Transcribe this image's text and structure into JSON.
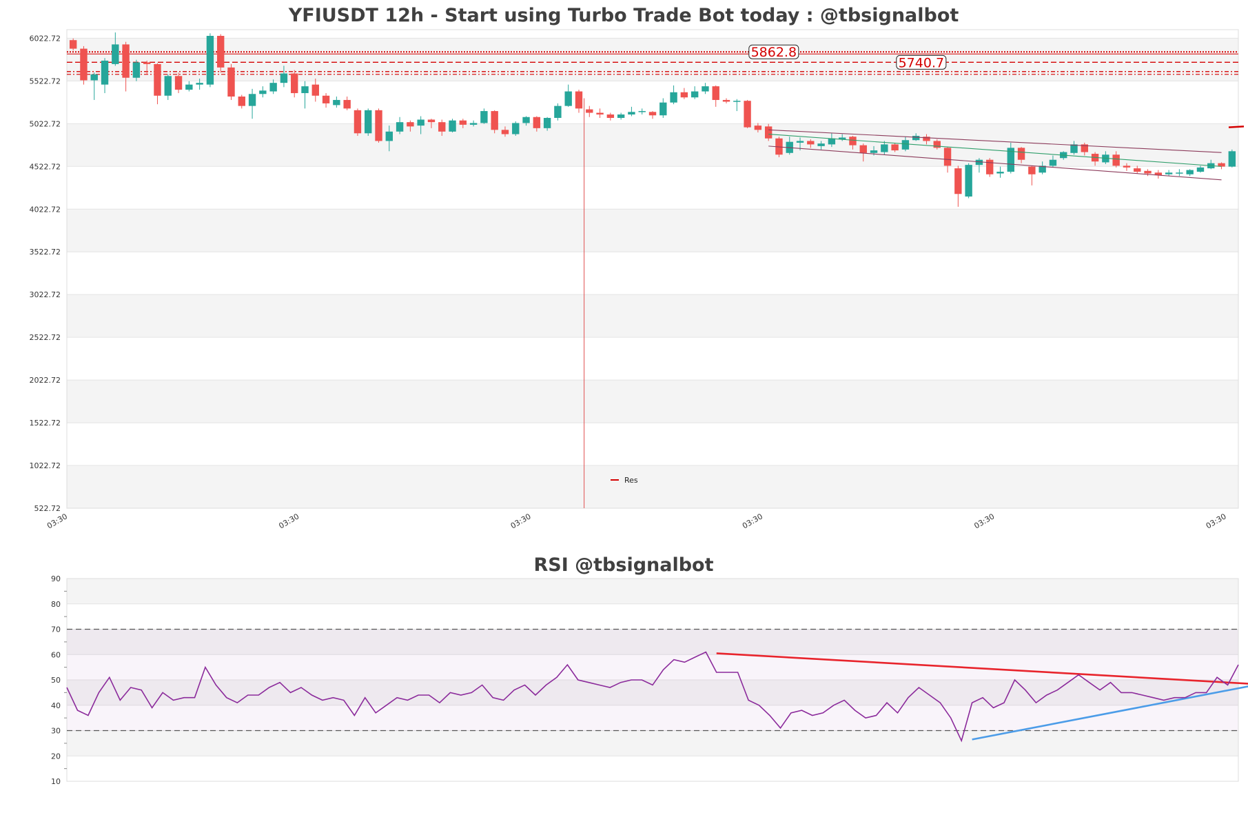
{
  "chart_data": [
    {
      "type": "candlestick",
      "title": "YFIUSDT 12h - Start using Turbo Trade Bot today : @tbsignalbot",
      "ylim": [
        522.72,
        6122.72
      ],
      "y_ticks": [
        "6022.72",
        "5522.72",
        "5022.72",
        "4522.72",
        "4022.72",
        "3522.72",
        "3022.72",
        "2522.72",
        "2022.72",
        "1522.72",
        "1022.72",
        "522.72"
      ],
      "y_tick_values": [
        6022.72,
        5522.72,
        5022.72,
        4522.72,
        4022.72,
        3522.72,
        3022.72,
        2522.72,
        2022.72,
        1522.72,
        1022.72,
        522.72
      ],
      "x_tick_labels": [
        "03:30",
        "03:30",
        "03:30",
        "03:30",
        "03:30",
        "03:30"
      ],
      "x_tick_indices": [
        -0.5,
        21.5,
        43.5,
        65.5,
        87.5,
        109.5
      ],
      "legend": [
        {
          "name": "Res",
          "color": "#d40000"
        }
      ],
      "resistance_levels": [
        {
          "value": 5862.8,
          "label": "5862.8",
          "label_at": 66.5,
          "style": "dotted"
        },
        {
          "value": 5740.7,
          "label": "5740.7",
          "label_at": 80.5,
          "style": "dashed"
        },
        {
          "value": 5632,
          "label": "",
          "style": "dashdot"
        }
      ],
      "channel": {
        "upper": [
          [
            66,
            4950
          ],
          [
            109,
            4685
          ]
        ],
        "lower": [
          [
            66,
            4760
          ],
          [
            109,
            4365
          ]
        ],
        "mid": [
          [
            66,
            4900
          ],
          [
            109,
            4522
          ]
        ]
      },
      "vertical_marker_index": 48.5,
      "colors": {
        "up": "#26a69a",
        "down": "#ef5350",
        "res": "#d40000",
        "channel": "#8b3a5a",
        "mid": "#2e9e6a"
      },
      "candles": [
        [
          6000,
          5900,
          6020,
          5880
        ],
        [
          5900,
          5530,
          5930,
          5480
        ],
        [
          5530,
          5600,
          5620,
          5300
        ],
        [
          5480,
          5760,
          5790,
          5380
        ],
        [
          5720,
          5950,
          6090,
          5700
        ],
        [
          5950,
          5560,
          5980,
          5400
        ],
        [
          5560,
          5740,
          5770,
          5520
        ],
        [
          5740,
          5720,
          5760,
          5600
        ],
        [
          5720,
          5350,
          5730,
          5250
        ],
        [
          5350,
          5580,
          5600,
          5300
        ],
        [
          5580,
          5420,
          5620,
          5380
        ],
        [
          5420,
          5480,
          5520,
          5400
        ],
        [
          5480,
          5500,
          5550,
          5420
        ],
        [
          5480,
          6050,
          6080,
          5450
        ],
        [
          6050,
          5680,
          6070,
          5620
        ],
        [
          5680,
          5340,
          5720,
          5300
        ],
        [
          5340,
          5230,
          5360,
          5200
        ],
        [
          5230,
          5370,
          5430,
          5080
        ],
        [
          5370,
          5410,
          5460,
          5330
        ],
        [
          5400,
          5500,
          5540,
          5370
        ],
        [
          5500,
          5610,
          5700,
          5450
        ],
        [
          5610,
          5380,
          5650,
          5330
        ],
        [
          5380,
          5460,
          5520,
          5200
        ],
        [
          5480,
          5350,
          5550,
          5280
        ],
        [
          5350,
          5260,
          5380,
          5210
        ],
        [
          5240,
          5300,
          5340,
          5210
        ],
        [
          5300,
          5200,
          5340,
          5180
        ],
        [
          5180,
          4910,
          5200,
          4880
        ],
        [
          4910,
          5180,
          5200,
          4880
        ],
        [
          5180,
          4820,
          5200,
          4800
        ],
        [
          4820,
          4930,
          5000,
          4700
        ],
        [
          4930,
          5040,
          5100,
          4900
        ],
        [
          5040,
          4990,
          5060,
          4930
        ],
        [
          5000,
          5070,
          5110,
          4900
        ],
        [
          5070,
          5040,
          5080,
          4970
        ],
        [
          5040,
          4930,
          5070,
          4880
        ],
        [
          4930,
          5060,
          5080,
          4920
        ],
        [
          5060,
          5010,
          5080,
          4970
        ],
        [
          5010,
          5030,
          5060,
          4990
        ],
        [
          5030,
          5170,
          5200,
          5020
        ],
        [
          5170,
          4950,
          5180,
          4910
        ],
        [
          4950,
          4900,
          4990,
          4870
        ],
        [
          4900,
          5030,
          5050,
          4880
        ],
        [
          5030,
          5100,
          5110,
          5000
        ],
        [
          5100,
          4970,
          5110,
          4930
        ],
        [
          4970,
          5090,
          5100,
          4940
        ],
        [
          5090,
          5230,
          5260,
          5060
        ],
        [
          5230,
          5400,
          5480,
          5220
        ],
        [
          5400,
          5200,
          5420,
          5150
        ],
        [
          5190,
          5150,
          5230,
          5100
        ],
        [
          5150,
          5130,
          5200,
          5090
        ],
        [
          5130,
          5090,
          5150,
          5060
        ],
        [
          5090,
          5130,
          5150,
          5070
        ],
        [
          5130,
          5160,
          5220,
          5110
        ],
        [
          5160,
          5170,
          5200,
          5130
        ],
        [
          5160,
          5120,
          5170,
          5080
        ],
        [
          5120,
          5270,
          5320,
          5090
        ],
        [
          5270,
          5390,
          5470,
          5250
        ],
        [
          5390,
          5330,
          5440,
          5310
        ],
        [
          5330,
          5400,
          5460,
          5310
        ],
        [
          5400,
          5460,
          5500,
          5370
        ],
        [
          5460,
          5300,
          5470,
          5220
        ],
        [
          5300,
          5280,
          5320,
          5260
        ],
        [
          5290,
          5290,
          5310,
          5170
        ],
        [
          5290,
          4980,
          5300,
          4970
        ],
        [
          5000,
          4950,
          5030,
          4920
        ],
        [
          4990,
          4850,
          5020,
          4820
        ],
        [
          4850,
          4660,
          4870,
          4630
        ],
        [
          4680,
          4810,
          4870,
          4660
        ],
        [
          4800,
          4820,
          4860,
          4710
        ],
        [
          4820,
          4780,
          4840,
          4740
        ],
        [
          4760,
          4790,
          4820,
          4720
        ],
        [
          4780,
          4850,
          4910,
          4750
        ],
        [
          4840,
          4860,
          4900,
          4820
        ],
        [
          4870,
          4770,
          4880,
          4720
        ],
        [
          4770,
          4680,
          4790,
          4580
        ],
        [
          4680,
          4710,
          4760,
          4650
        ],
        [
          4690,
          4780,
          4820,
          4660
        ],
        [
          4780,
          4710,
          4800,
          4690
        ],
        [
          4720,
          4830,
          4870,
          4700
        ],
        [
          4830,
          4880,
          4910,
          4820
        ],
        [
          4870,
          4820,
          4900,
          4780
        ],
        [
          4820,
          4740,
          4840,
          4720
        ],
        [
          4740,
          4530,
          4750,
          4450
        ],
        [
          4500,
          4200,
          4530,
          4050
        ],
        [
          4170,
          4540,
          4560,
          4150
        ],
        [
          4540,
          4600,
          4620,
          4450
        ],
        [
          4600,
          4430,
          4620,
          4400
        ],
        [
          4440,
          4460,
          4520,
          4390
        ],
        [
          4460,
          4740,
          4800,
          4440
        ],
        [
          4740,
          4600,
          4750,
          4560
        ],
        [
          4520,
          4430,
          4530,
          4300
        ],
        [
          4450,
          4530,
          4580,
          4430
        ],
        [
          4530,
          4600,
          4650,
          4510
        ],
        [
          4620,
          4690,
          4700,
          4600
        ],
        [
          4680,
          4780,
          4820,
          4660
        ],
        [
          4780,
          4690,
          4800,
          4650
        ],
        [
          4670,
          4580,
          4690,
          4530
        ],
        [
          4570,
          4660,
          4700,
          4550
        ],
        [
          4660,
          4530,
          4700,
          4510
        ],
        [
          4530,
          4510,
          4560,
          4470
        ],
        [
          4500,
          4460,
          4530,
          4440
        ],
        [
          4470,
          4440,
          4490,
          4410
        ],
        [
          4450,
          4420,
          4480,
          4380
        ],
        [
          4430,
          4450,
          4480,
          4410
        ],
        [
          4450,
          4450,
          4490,
          4410
        ],
        [
          4430,
          4480,
          4490,
          4410
        ],
        [
          4460,
          4510,
          4530,
          4450
        ],
        [
          4500,
          4560,
          4600,
          4490
        ],
        [
          4560,
          4520,
          4570,
          4490
        ],
        [
          4520,
          4700,
          4720,
          4510
        ]
      ]
    },
    {
      "type": "line",
      "title": "RSI @tbsignalbot",
      "ylim": [
        10,
        90
      ],
      "y_ticks": [
        "90",
        "80",
        "70",
        "60",
        "50",
        "40",
        "30",
        "20",
        "10"
      ],
      "y_tick_values": [
        90,
        80,
        70,
        60,
        50,
        40,
        30,
        20,
        10
      ],
      "reference_lines": [
        70,
        30
      ],
      "colors": {
        "rsi": "#8b2a9b",
        "resistance_trend": "#e8242c",
        "support_trend": "#4b9ce8"
      },
      "trend_lines": [
        {
          "name": "resistance",
          "from": [
            61,
            60.5
          ],
          "to": [
            111,
            48.5
          ]
        },
        {
          "name": "support",
          "from": [
            85,
            26.5
          ],
          "to": [
            111,
            47.5
          ]
        }
      ],
      "values": [
        47,
        38,
        36,
        45,
        51,
        42,
        47,
        46,
        39,
        45,
        42,
        43,
        43,
        55,
        48,
        43,
        41,
        44,
        44,
        47,
        49,
        45,
        47,
        44,
        42,
        43,
        42,
        36,
        43,
        37,
        40,
        43,
        42,
        44,
        44,
        41,
        45,
        44,
        45,
        48,
        43,
        42,
        46,
        48,
        44,
        48,
        51,
        56,
        50,
        49,
        48,
        47,
        49,
        50,
        50,
        48,
        54,
        58,
        57,
        59,
        61,
        53,
        53,
        53,
        42,
        40,
        36,
        31,
        37,
        38,
        36,
        37,
        40,
        42,
        38,
        35,
        36,
        41,
        37,
        43,
        47,
        44,
        41,
        35,
        26,
        41,
        43,
        39,
        41,
        50,
        46,
        41,
        44,
        46,
        49,
        52,
        49,
        46,
        49,
        45,
        45,
        44,
        43,
        42,
        43,
        43,
        45,
        45,
        51,
        48,
        56
      ]
    }
  ]
}
